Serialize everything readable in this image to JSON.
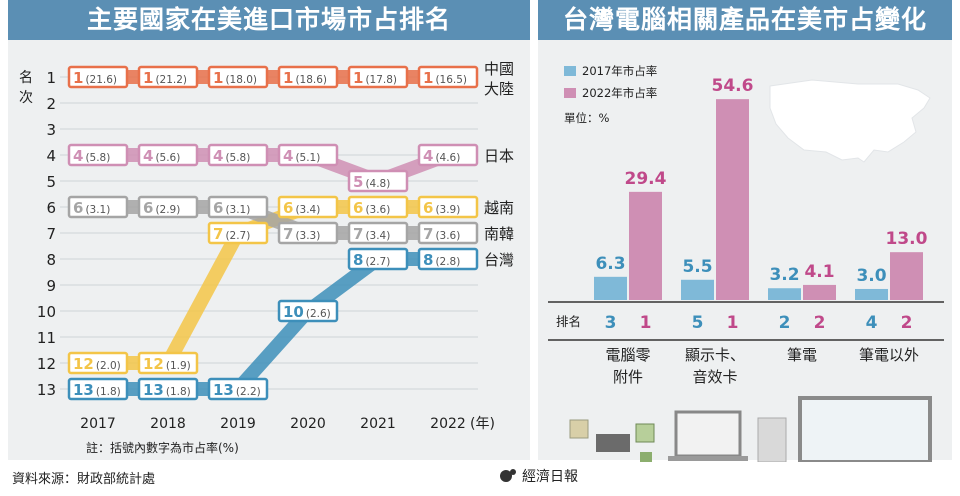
{
  "left_title": "主要國家在美進口市場市占排名",
  "right_title": "台灣電腦相關產品在美市占變化",
  "footer_source": "資料來源：財政部統計處",
  "footer_brand": "經濟日報",
  "chart_data": [
    {
      "type": "line",
      "title": "主要國家在美進口市場市占排名",
      "ylabel": "名次",
      "xlabel": "(年)",
      "note": "註：括號內數字為市占率(%)",
      "x": [
        "2017",
        "2018",
        "2019",
        "2020",
        "2021",
        "2022"
      ],
      "ylim": [
        1,
        13
      ],
      "y_ticks": [
        "1",
        "2",
        "3",
        "4",
        "5",
        "6",
        "7",
        "8",
        "9",
        "10",
        "11",
        "12",
        "13"
      ],
      "grid": true,
      "series": [
        {
          "name": "中國\n大陸",
          "color": "#e8704a",
          "rank": [
            1,
            1,
            1,
            1,
            1,
            1
          ],
          "share": [
            "(21.6)",
            "(21.2)",
            "(18.0)",
            "(18.6)",
            "(17.8)",
            "(16.5)"
          ]
        },
        {
          "name": "日本",
          "color": "#cf8fb4",
          "rank": [
            4,
            4,
            4,
            4,
            5,
            4
          ],
          "share": [
            "(5.8)",
            "(5.6)",
            "(5.8)",
            "(5.1)",
            "(4.8)",
            "(4.6)"
          ]
        },
        {
          "name": "越南",
          "color": "#f3c548",
          "rank": [
            12,
            12,
            7,
            6,
            6,
            6
          ],
          "share": [
            "(2.0)",
            "(1.9)",
            "(2.7)",
            "(3.4)",
            "(3.6)",
            "(3.9)"
          ]
        },
        {
          "name": "南韓",
          "color": "#a5a5a5",
          "rank": [
            6,
            6,
            6,
            7,
            7,
            7
          ],
          "share": [
            "(3.1)",
            "(2.9)",
            "(3.1)",
            "(3.3)",
            "(3.4)",
            "(3.6)"
          ]
        },
        {
          "name": "台灣",
          "color": "#3d8fba",
          "rank": [
            13,
            13,
            13,
            10,
            8,
            8
          ],
          "share": [
            "(1.8)",
            "(1.8)",
            "(2.2)",
            "(2.6)",
            "(2.7)",
            "(2.8)"
          ]
        }
      ]
    },
    {
      "type": "bar",
      "title": "台灣電腦相關產品在美市占變化",
      "categories": [
        "電腦零\n附件",
        "顯示卡、\n音效卡",
        "筆電",
        "筆電以外"
      ],
      "unit": "單位：%",
      "rank_label": "排名",
      "ylim": [
        0,
        60
      ],
      "series": [
        {
          "name": "2017年市占率",
          "color": "#7fb9d8",
          "values": [
            6.3,
            5.5,
            3.2,
            3.0
          ],
          "ranks": [
            3,
            5,
            2,
            4
          ]
        },
        {
          "name": "2022年市占率",
          "color": "#cf8fb4",
          "values": [
            29.4,
            54.6,
            4.1,
            13.0
          ],
          "ranks": [
            1,
            1,
            2,
            2
          ]
        }
      ]
    }
  ]
}
